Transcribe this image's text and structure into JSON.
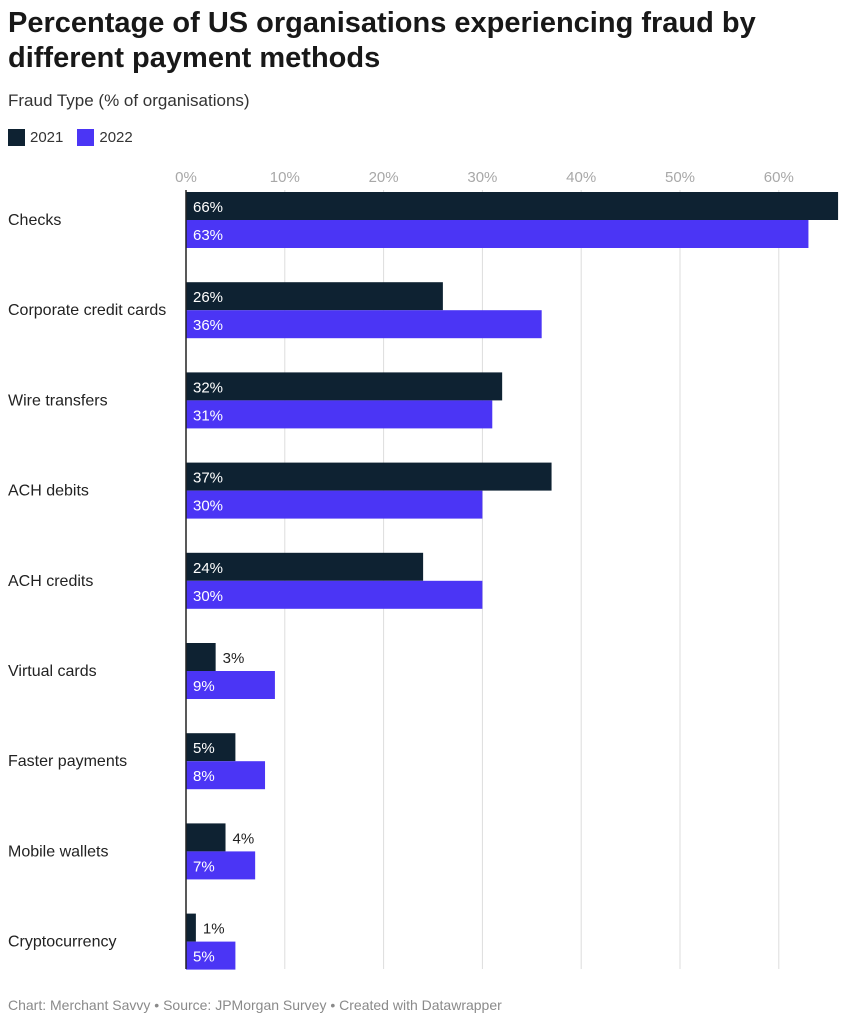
{
  "title": "Percentage of US organisations experiencing fraud by different payment methods",
  "subtitle": "Fraud Type (% of organisations)",
  "footer": "Chart: Merchant Savvy • Source: JPMorgan Survey • Created with Datawrapper",
  "colors": {
    "2021": "#0e2232",
    "2022": "#4b35f5",
    "grid": "#dddddd",
    "axis_text": "#a8a8a8"
  },
  "chart_data": {
    "type": "bar",
    "orientation": "horizontal",
    "categories": [
      "Checks",
      "Corporate credit cards",
      "Wire transfers",
      "ACH debits",
      "ACH credits",
      "Virtual cards",
      "Faster payments",
      "Mobile wallets",
      "Cryptocurrency"
    ],
    "series": [
      {
        "name": "2021",
        "values": [
          66,
          26,
          32,
          37,
          24,
          3,
          5,
          4,
          1
        ]
      },
      {
        "name": "2022",
        "values": [
          63,
          36,
          31,
          30,
          30,
          9,
          8,
          7,
          5
        ]
      }
    ],
    "x_ticks": [
      "0%",
      "10%",
      "20%",
      "30%",
      "40%",
      "50%",
      "60%"
    ],
    "xlim": [
      0,
      66
    ],
    "value_suffix": "%",
    "grid": true,
    "legend_position": "top-left"
  }
}
